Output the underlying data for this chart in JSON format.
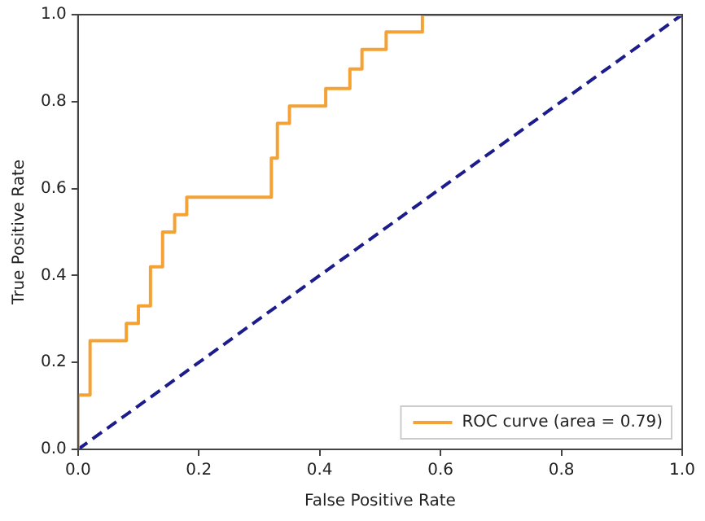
{
  "chart_data": {
    "type": "line",
    "xlabel": "False Positive Rate",
    "ylabel": "True Positive Rate",
    "xlim": [
      0,
      1
    ],
    "ylim": [
      0,
      1
    ],
    "xticks": [
      {
        "value": 0,
        "label": "0.0"
      },
      {
        "value": 0.2,
        "label": "0.2"
      },
      {
        "value": 0.4,
        "label": "0.4"
      },
      {
        "value": 0.6,
        "label": "0.6"
      },
      {
        "value": 0.8,
        "label": "0.8"
      },
      {
        "value": 1,
        "label": "1.0"
      }
    ],
    "yticks": [
      {
        "value": 0,
        "label": "0.0"
      },
      {
        "value": 0.2,
        "label": "0.2"
      },
      {
        "value": 0.4,
        "label": "0.4"
      },
      {
        "value": 0.6,
        "label": "0.6"
      },
      {
        "value": 0.8,
        "label": "0.8"
      },
      {
        "value": 1,
        "label": "1.0"
      }
    ],
    "grid": false,
    "legend": "bottom right",
    "marker": "none",
    "series": [
      {
        "name": "ROC curve (area = 0.79)",
        "color": "#f4a235",
        "line_style": "solid",
        "x": [
          0,
          0,
          0.02,
          0.02,
          0.08,
          0.08,
          0.1,
          0.1,
          0.12,
          0.12,
          0.14,
          0.14,
          0.16,
          0.16,
          0.18,
          0.18,
          0.32,
          0.32,
          0.33,
          0.33,
          0.35,
          0.35,
          0.41,
          0.41,
          0.45,
          0.45,
          0.47,
          0.47,
          0.51,
          0.51,
          0.57,
          0.57,
          1
        ],
        "values": [
          0,
          0.125,
          0.125,
          0.25,
          0.25,
          0.29,
          0.29,
          0.33,
          0.33,
          0.42,
          0.42,
          0.5,
          0.5,
          0.54,
          0.54,
          0.58,
          0.58,
          0.67,
          0.67,
          0.75,
          0.75,
          0.79,
          0.79,
          0.83,
          0.83,
          0.875,
          0.875,
          0.92,
          0.92,
          0.96,
          0.96,
          1,
          1
        ]
      },
      {
        "color": "#1c1c8c",
        "line_style": "dashed",
        "x": [
          0,
          1
        ],
        "values": [
          0,
          1
        ]
      }
    ]
  }
}
